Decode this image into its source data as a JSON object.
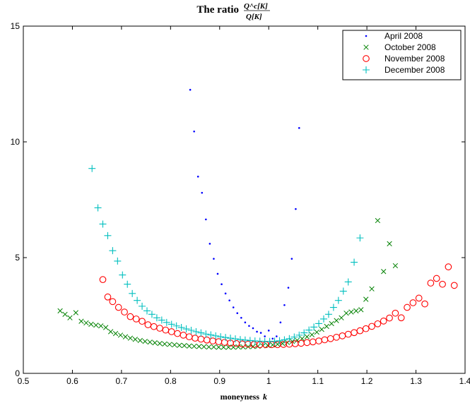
{
  "chart_data": {
    "type": "scatter",
    "title": {
      "prefix": "The ratio",
      "numerator": "Q^c[K]",
      "denominator": "Q[K]"
    },
    "xlabel": {
      "text": "moneyness",
      "var": "k"
    },
    "ylabel": "",
    "xlim": [
      0.5,
      1.4
    ],
    "ylim": [
      0,
      15
    ],
    "xticks": [
      "0.5",
      "0.6",
      "0.7",
      "0.8",
      "0.9",
      "1",
      "1.1",
      "1.2",
      "1.3",
      "1.4"
    ],
    "yticks": [
      "0",
      "5",
      "10",
      "15"
    ],
    "grid": false,
    "legend_position": "top-right",
    "series": [
      {
        "name": "April 2008",
        "marker": "dot",
        "color": "#0000ff",
        "points": [
          [
            0.84,
            12.25
          ],
          [
            0.848,
            10.45
          ],
          [
            0.856,
            8.5
          ],
          [
            0.864,
            7.8
          ],
          [
            0.872,
            6.65
          ],
          [
            0.88,
            5.6
          ],
          [
            0.888,
            4.95
          ],
          [
            0.896,
            4.3
          ],
          [
            0.904,
            3.85
          ],
          [
            0.912,
            3.45
          ],
          [
            0.92,
            3.15
          ],
          [
            0.928,
            2.85
          ],
          [
            0.936,
            2.6
          ],
          [
            0.944,
            2.4
          ],
          [
            0.952,
            2.2
          ],
          [
            0.96,
            2.05
          ],
          [
            0.968,
            1.95
          ],
          [
            0.976,
            1.8
          ],
          [
            0.984,
            1.75
          ],
          [
            0.992,
            1.6
          ],
          [
            1.0,
            1.85
          ],
          [
            1.008,
            1.5
          ],
          [
            1.016,
            1.6
          ],
          [
            1.024,
            2.2
          ],
          [
            1.032,
            2.95
          ],
          [
            1.04,
            3.7
          ],
          [
            1.047,
            4.95
          ],
          [
            1.055,
            7.1
          ],
          [
            1.062,
            10.6
          ]
        ]
      },
      {
        "name": "October 2008",
        "marker": "x",
        "color": "#008000",
        "points": [
          [
            0.575,
            2.7
          ],
          [
            0.585,
            2.55
          ],
          [
            0.595,
            2.4
          ],
          [
            0.607,
            2.62
          ],
          [
            0.618,
            2.25
          ],
          [
            0.628,
            2.18
          ],
          [
            0.638,
            2.12
          ],
          [
            0.648,
            2.08
          ],
          [
            0.658,
            2.05
          ],
          [
            0.668,
            1.98
          ],
          [
            0.678,
            1.8
          ],
          [
            0.688,
            1.72
          ],
          [
            0.698,
            1.65
          ],
          [
            0.708,
            1.58
          ],
          [
            0.718,
            1.52
          ],
          [
            0.728,
            1.47
          ],
          [
            0.738,
            1.42
          ],
          [
            0.748,
            1.38
          ],
          [
            0.758,
            1.35
          ],
          [
            0.768,
            1.32
          ],
          [
            0.778,
            1.29
          ],
          [
            0.788,
            1.27
          ],
          [
            0.798,
            1.25
          ],
          [
            0.808,
            1.23
          ],
          [
            0.818,
            1.21
          ],
          [
            0.828,
            1.2
          ],
          [
            0.838,
            1.18
          ],
          [
            0.848,
            1.17
          ],
          [
            0.858,
            1.16
          ],
          [
            0.868,
            1.15
          ],
          [
            0.878,
            1.14
          ],
          [
            0.888,
            1.14
          ],
          [
            0.898,
            1.13
          ],
          [
            0.908,
            1.13
          ],
          [
            0.918,
            1.13
          ],
          [
            0.928,
            1.13
          ],
          [
            0.938,
            1.14
          ],
          [
            0.948,
            1.14
          ],
          [
            0.958,
            1.15
          ],
          [
            0.968,
            1.16
          ],
          [
            0.978,
            1.17
          ],
          [
            0.988,
            1.19
          ],
          [
            0.998,
            1.21
          ],
          [
            1.008,
            1.23
          ],
          [
            1.018,
            1.26
          ],
          [
            1.028,
            1.29
          ],
          [
            1.038,
            1.33
          ],
          [
            1.048,
            1.38
          ],
          [
            1.058,
            1.43
          ],
          [
            1.068,
            1.5
          ],
          [
            1.078,
            1.58
          ],
          [
            1.088,
            1.67
          ],
          [
            1.098,
            1.78
          ],
          [
            1.108,
            1.9
          ],
          [
            1.118,
            2.03
          ],
          [
            1.128,
            2.15
          ],
          [
            1.138,
            2.28
          ],
          [
            1.148,
            2.4
          ],
          [
            1.158,
            2.6
          ],
          [
            1.168,
            2.65
          ],
          [
            1.178,
            2.7
          ],
          [
            1.188,
            2.75
          ],
          [
            1.198,
            3.2
          ],
          [
            1.21,
            3.65
          ],
          [
            1.222,
            6.6
          ],
          [
            1.234,
            4.4
          ],
          [
            1.246,
            5.6
          ],
          [
            1.258,
            4.65
          ]
        ]
      },
      {
        "name": "November 2008",
        "marker": "circle",
        "color": "#ff0000",
        "points": [
          [
            0.662,
            4.05
          ],
          [
            0.672,
            3.3
          ],
          [
            0.682,
            3.1
          ],
          [
            0.694,
            2.85
          ],
          [
            0.706,
            2.65
          ],
          [
            0.718,
            2.45
          ],
          [
            0.73,
            2.35
          ],
          [
            0.742,
            2.25
          ],
          [
            0.754,
            2.1
          ],
          [
            0.766,
            2.02
          ],
          [
            0.778,
            1.95
          ],
          [
            0.79,
            1.87
          ],
          [
            0.802,
            1.8
          ],
          [
            0.814,
            1.72
          ],
          [
            0.826,
            1.65
          ],
          [
            0.838,
            1.58
          ],
          [
            0.85,
            1.52
          ],
          [
            0.862,
            1.48
          ],
          [
            0.874,
            1.44
          ],
          [
            0.886,
            1.4
          ],
          [
            0.898,
            1.37
          ],
          [
            0.91,
            1.34
          ],
          [
            0.922,
            1.31
          ],
          [
            0.934,
            1.29
          ],
          [
            0.946,
            1.27
          ],
          [
            0.958,
            1.26
          ],
          [
            0.97,
            1.25
          ],
          [
            0.982,
            1.24
          ],
          [
            0.994,
            1.24
          ],
          [
            1.006,
            1.24
          ],
          [
            1.018,
            1.24
          ],
          [
            1.03,
            1.25
          ],
          [
            1.042,
            1.26
          ],
          [
            1.054,
            1.28
          ],
          [
            1.066,
            1.3
          ],
          [
            1.078,
            1.33
          ],
          [
            1.09,
            1.36
          ],
          [
            1.102,
            1.4
          ],
          [
            1.114,
            1.45
          ],
          [
            1.126,
            1.5
          ],
          [
            1.138,
            1.56
          ],
          [
            1.15,
            1.62
          ],
          [
            1.162,
            1.69
          ],
          [
            1.174,
            1.76
          ],
          [
            1.186,
            1.84
          ],
          [
            1.198,
            1.93
          ],
          [
            1.21,
            2.03
          ],
          [
            1.222,
            2.14
          ],
          [
            1.234,
            2.26
          ],
          [
            1.246,
            2.39
          ],
          [
            1.258,
            2.6
          ],
          [
            1.27,
            2.4
          ],
          [
            1.282,
            2.85
          ],
          [
            1.294,
            3.05
          ],
          [
            1.306,
            3.25
          ],
          [
            1.318,
            3.0
          ],
          [
            1.33,
            3.9
          ],
          [
            1.342,
            4.1
          ],
          [
            1.354,
            3.85
          ],
          [
            1.366,
            4.6
          ],
          [
            1.378,
            3.8
          ]
        ]
      },
      {
        "name": "December 2008",
        "marker": "plus",
        "color": "#00bfbf",
        "points": [
          [
            0.64,
            8.85
          ],
          [
            0.652,
            7.15
          ],
          [
            0.662,
            6.45
          ],
          [
            0.672,
            5.95
          ],
          [
            0.682,
            5.3
          ],
          [
            0.692,
            4.85
          ],
          [
            0.702,
            4.25
          ],
          [
            0.712,
            3.85
          ],
          [
            0.722,
            3.45
          ],
          [
            0.732,
            3.15
          ],
          [
            0.742,
            2.9
          ],
          [
            0.752,
            2.7
          ],
          [
            0.762,
            2.55
          ],
          [
            0.772,
            2.4
          ],
          [
            0.782,
            2.3
          ],
          [
            0.792,
            2.2
          ],
          [
            0.802,
            2.12
          ],
          [
            0.812,
            2.05
          ],
          [
            0.822,
            1.98
          ],
          [
            0.832,
            1.92
          ],
          [
            0.842,
            1.86
          ],
          [
            0.852,
            1.8
          ],
          [
            0.862,
            1.75
          ],
          [
            0.872,
            1.7
          ],
          [
            0.882,
            1.66
          ],
          [
            0.892,
            1.62
          ],
          [
            0.902,
            1.58
          ],
          [
            0.912,
            1.55
          ],
          [
            0.922,
            1.52
          ],
          [
            0.932,
            1.49
          ],
          [
            0.942,
            1.46
          ],
          [
            0.952,
            1.44
          ],
          [
            0.962,
            1.42
          ],
          [
            0.972,
            1.4
          ],
          [
            0.982,
            1.39
          ],
          [
            0.992,
            1.38
          ],
          [
            1.002,
            1.38
          ],
          [
            1.012,
            1.39
          ],
          [
            1.022,
            1.41
          ],
          [
            1.032,
            1.45
          ],
          [
            1.042,
            1.5
          ],
          [
            1.052,
            1.57
          ],
          [
            1.062,
            1.65
          ],
          [
            1.072,
            1.75
          ],
          [
            1.082,
            1.87
          ],
          [
            1.092,
            2.0
          ],
          [
            1.102,
            2.15
          ],
          [
            1.112,
            2.35
          ],
          [
            1.122,
            2.55
          ],
          [
            1.132,
            2.85
          ],
          [
            1.142,
            3.15
          ],
          [
            1.152,
            3.55
          ],
          [
            1.162,
            3.95
          ],
          [
            1.174,
            4.8
          ],
          [
            1.186,
            5.85
          ]
        ]
      }
    ]
  }
}
